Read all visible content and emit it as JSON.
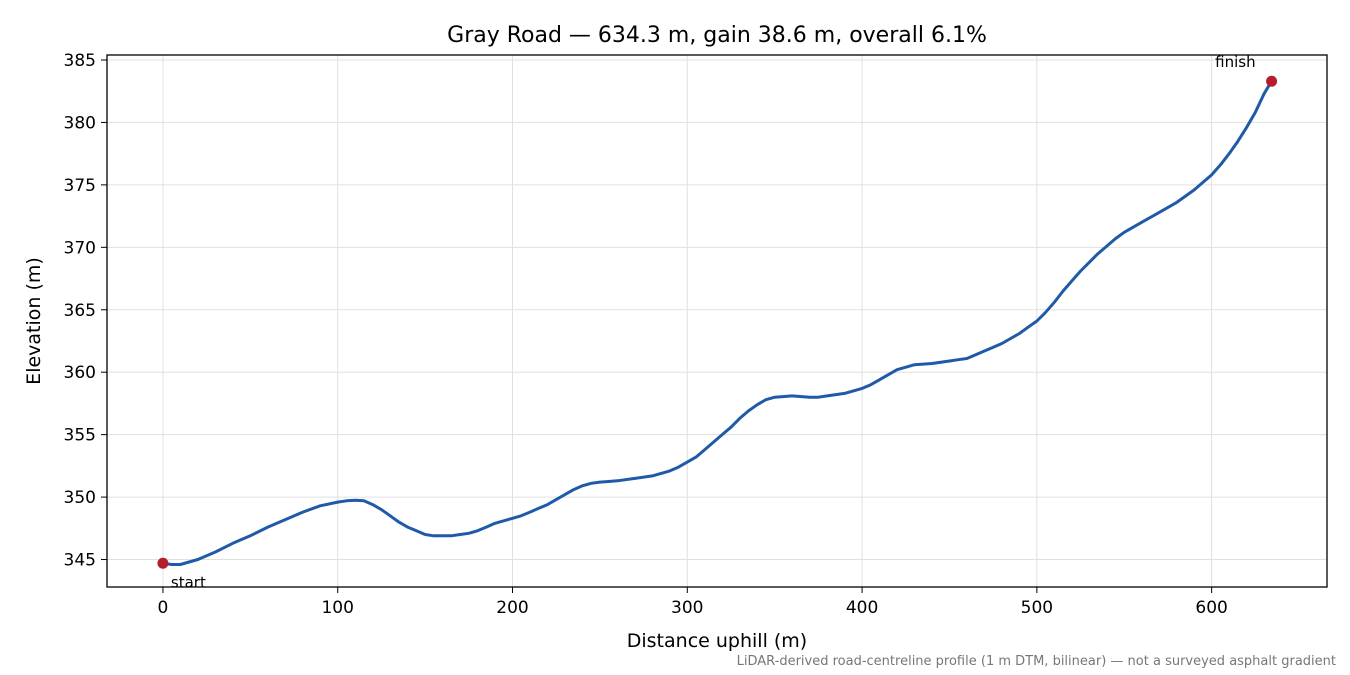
{
  "chart_data": {
    "type": "line",
    "title": "Gray Road — 634.3 m, gain 38.6 m, overall 6.1%",
    "xlabel": "Distance uphill (m)",
    "ylabel": "Elevation (m)",
    "xlim": [
      -32,
      666
    ],
    "ylim": [
      342.8,
      385.4
    ],
    "xticks": [
      0,
      100,
      200,
      300,
      400,
      500,
      600
    ],
    "yticks": [
      345,
      350,
      355,
      360,
      365,
      370,
      375,
      380,
      385
    ],
    "grid": true,
    "line_color": "#1f5aa8",
    "marker_color": "#b71c2a",
    "series": [
      {
        "x": [
          0,
          5,
          10,
          15,
          20,
          25,
          30,
          40,
          50,
          60,
          70,
          80,
          90,
          100,
          105,
          110,
          115,
          120,
          125,
          130,
          135,
          140,
          145,
          150,
          155,
          160,
          165,
          170,
          175,
          180,
          185,
          190,
          195,
          200,
          205,
          210,
          215,
          220,
          225,
          230,
          235,
          240,
          245,
          250,
          255,
          260,
          270,
          280,
          285,
          290,
          295,
          300,
          305,
          310,
          315,
          320,
          325,
          330,
          335,
          340,
          345,
          350,
          360,
          370,
          375,
          380,
          390,
          395,
          400,
          405,
          410,
          415,
          420,
          425,
          430,
          440,
          450,
          455,
          460,
          465,
          470,
          475,
          480,
          485,
          490,
          495,
          500,
          505,
          510,
          515,
          520,
          525,
          530,
          535,
          540,
          545,
          550,
          560,
          570,
          580,
          590,
          600,
          605,
          610,
          615,
          620,
          625,
          630,
          634.3
        ],
        "y": [
          344.7,
          344.6,
          344.6,
          344.8,
          345.0,
          345.3,
          345.6,
          346.3,
          346.9,
          347.6,
          348.2,
          348.8,
          349.3,
          349.6,
          349.7,
          349.75,
          349.7,
          349.4,
          349.0,
          348.5,
          348.0,
          347.6,
          347.3,
          347.0,
          346.9,
          346.9,
          346.9,
          347.0,
          347.1,
          347.3,
          347.6,
          347.9,
          348.1,
          348.3,
          348.5,
          348.8,
          349.1,
          349.4,
          349.8,
          350.2,
          350.6,
          350.9,
          351.1,
          351.2,
          351.25,
          351.3,
          351.5,
          351.7,
          351.9,
          352.1,
          352.4,
          352.8,
          353.2,
          353.8,
          354.4,
          355.0,
          355.6,
          356.3,
          356.9,
          357.4,
          357.8,
          358.0,
          358.1,
          358.0,
          358.0,
          358.1,
          358.3,
          358.5,
          358.7,
          359.0,
          359.4,
          359.8,
          360.2,
          360.4,
          360.6,
          360.7,
          360.9,
          361.0,
          361.1,
          361.4,
          361.7,
          362.0,
          362.3,
          362.7,
          363.1,
          363.6,
          364.1,
          364.8,
          365.6,
          366.5,
          367.3,
          368.1,
          368.8,
          369.5,
          370.1,
          370.7,
          371.2,
          372.0,
          372.8,
          373.6,
          374.6,
          375.8,
          376.6,
          377.5,
          378.5,
          379.6,
          380.8,
          382.3,
          383.3
        ]
      }
    ],
    "annotations": [
      {
        "text": "start",
        "x": 0,
        "y": 344.7
      },
      {
        "text": "finish",
        "x": 634.3,
        "y": 383.3
      }
    ],
    "footnote": "LiDAR-derived road-centreline profile (1 m DTM, bilinear) — not a surveyed asphalt gradient"
  }
}
